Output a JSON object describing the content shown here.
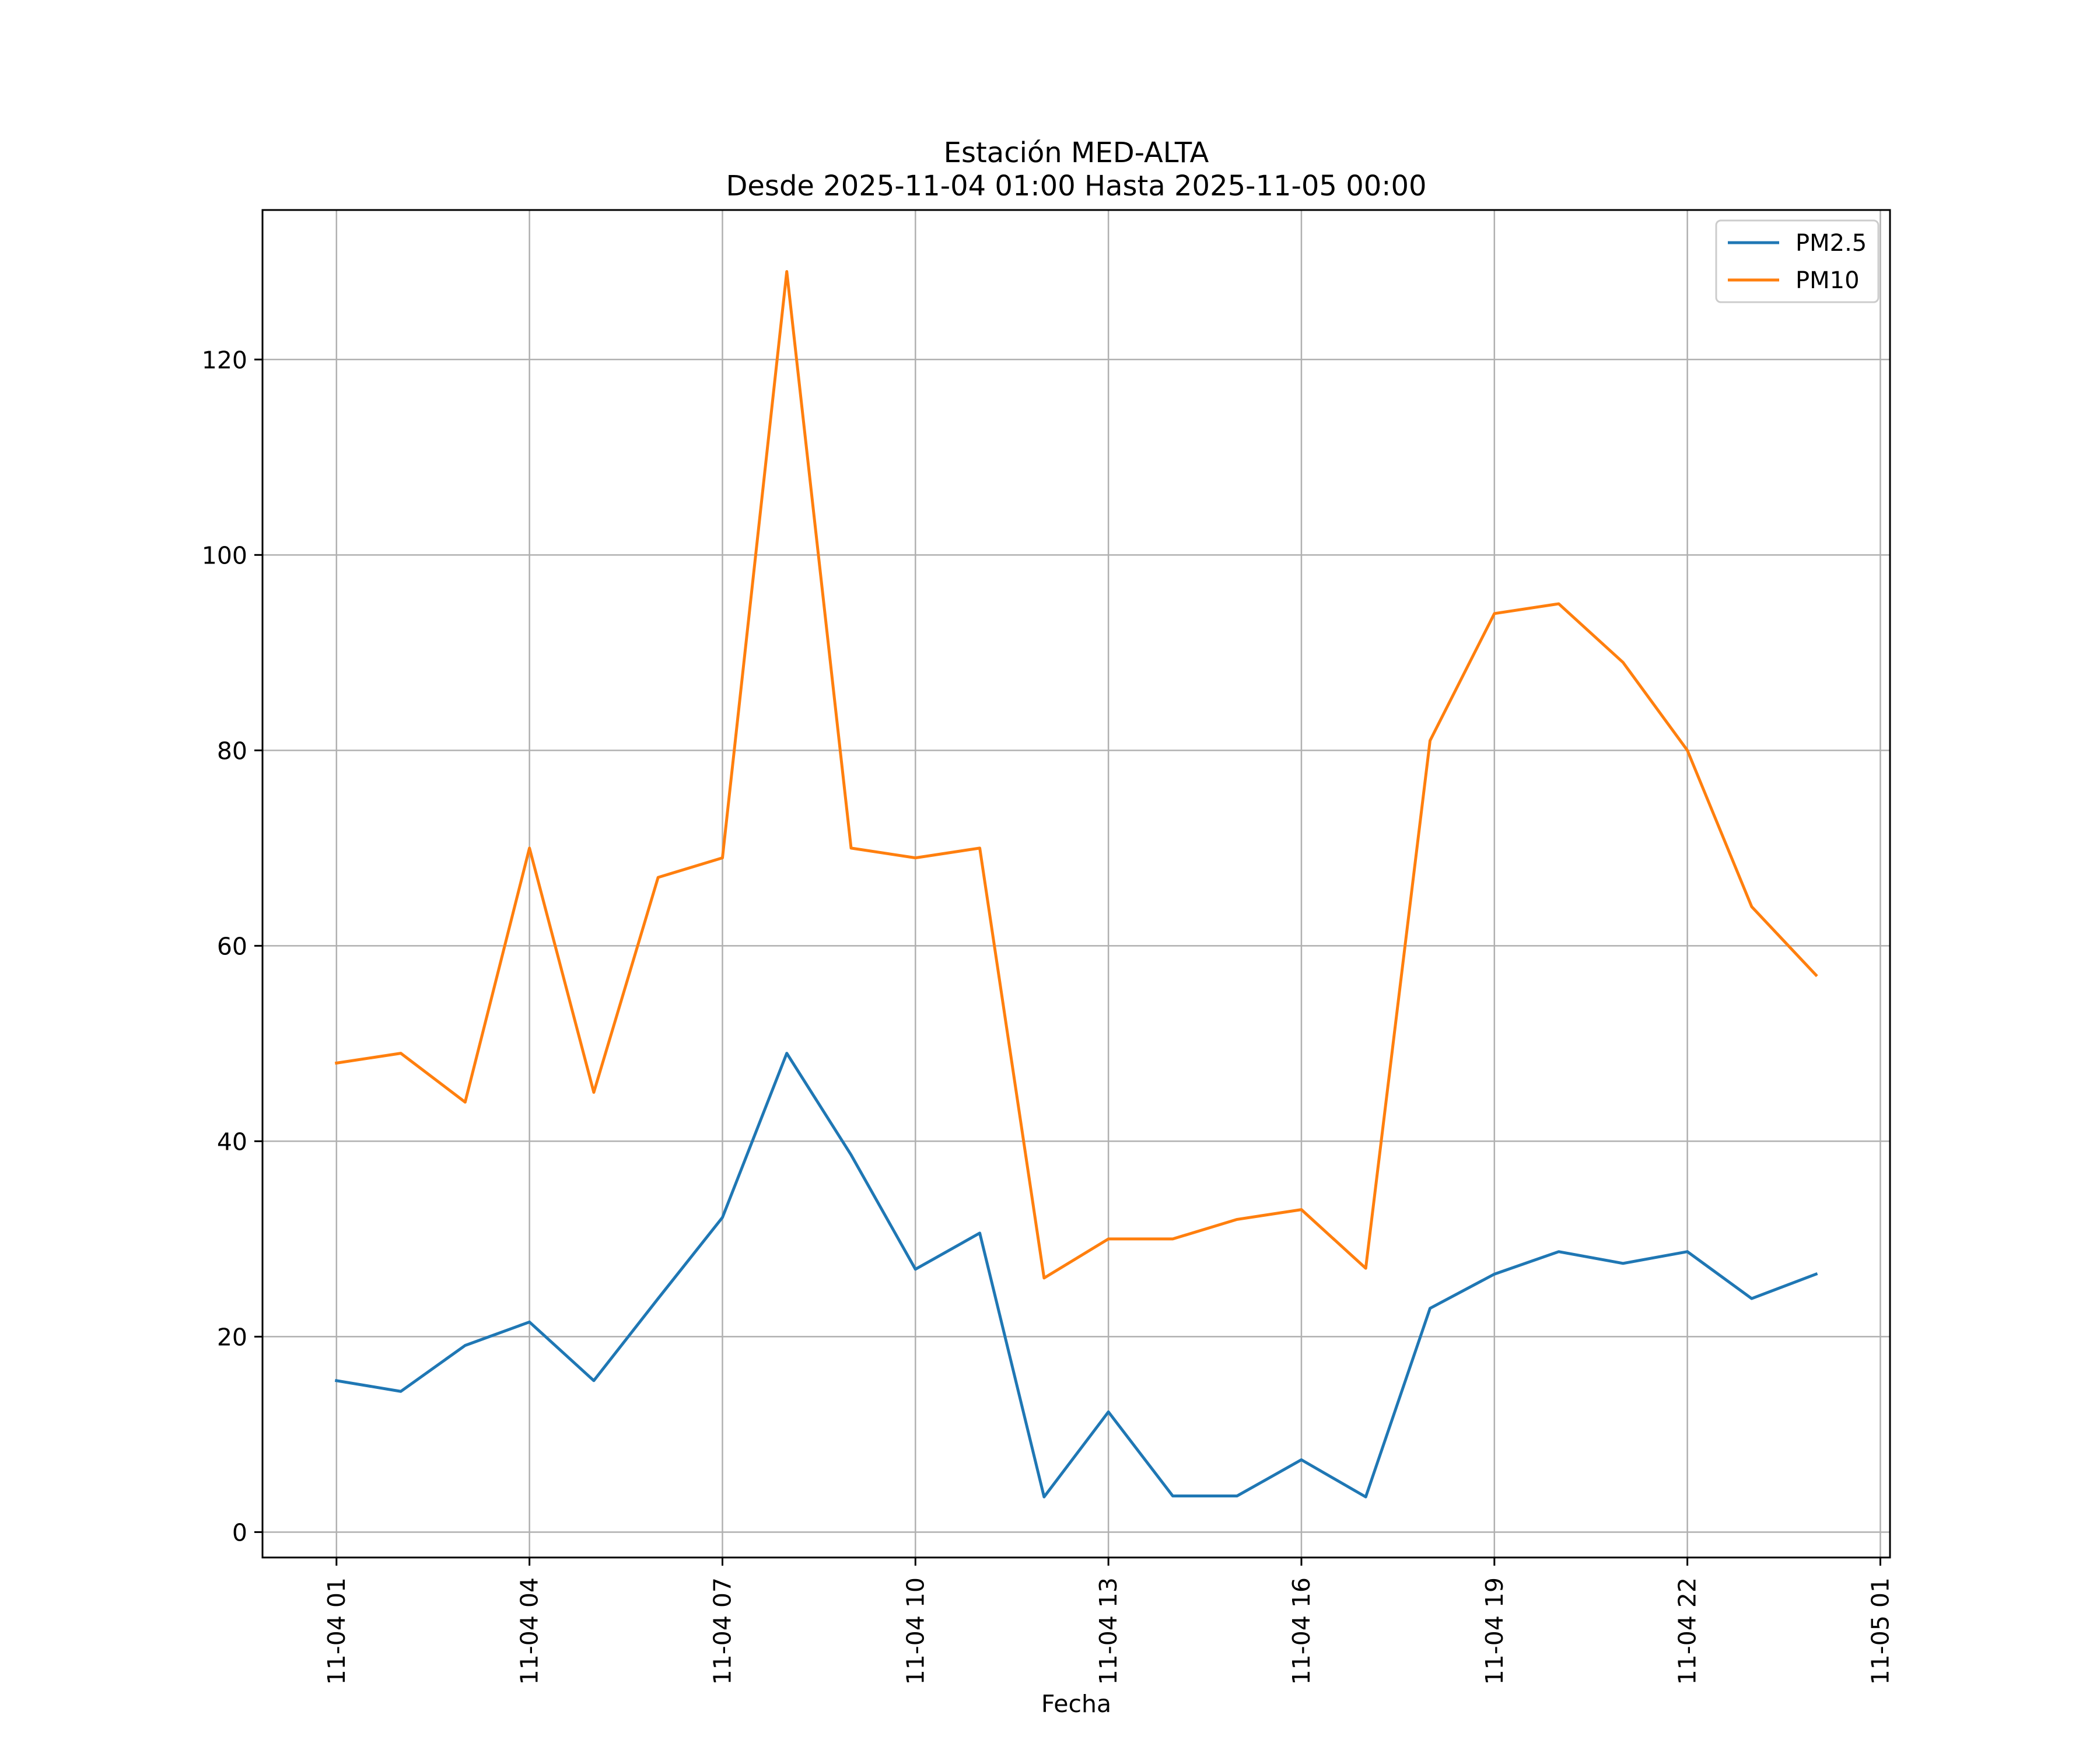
{
  "chart_data": {
    "type": "line",
    "title_line1": "Estación MED-ALTA",
    "title_line2": "Desde 2025-11-04 01:00 Hasta 2025-11-05 00:00",
    "xlabel": "Fecha",
    "ylabel": "",
    "x": [
      "11-04 01",
      "11-04 02",
      "11-04 03",
      "11-04 04",
      "11-04 05",
      "11-04 06",
      "11-04 07",
      "11-04 08",
      "11-04 09",
      "11-04 10",
      "11-04 11",
      "11-04 12",
      "11-04 13",
      "11-04 14",
      "11-04 15",
      "11-04 16",
      "11-04 17",
      "11-04 18",
      "11-04 19",
      "11-04 20",
      "11-04 21",
      "11-04 22",
      "11-04 23",
      "11-05 00"
    ],
    "x_ticks": [
      "11-04 01",
      "11-04 04",
      "11-04 07",
      "11-04 10",
      "11-04 13",
      "11-04 16",
      "11-04 19",
      "11-04 22",
      "11-05 01"
    ],
    "x_tick_hours": [
      0,
      3,
      6,
      9,
      12,
      15,
      18,
      21,
      24
    ],
    "xlim_hours": [
      -1.15,
      24.15
    ],
    "y_ticks": [
      0,
      20,
      40,
      60,
      80,
      100,
      120
    ],
    "y_tick_labels": [
      "0",
      "20",
      "40",
      "60",
      "80",
      "100",
      "120"
    ],
    "ylim": [
      -2.6,
      135.3
    ],
    "grid": true,
    "legend_position": "top-right",
    "series": [
      {
        "name": "PM2.5",
        "color": "#1f77b4",
        "values": [
          15.5,
          14.4,
          19.1,
          21.5,
          15.5,
          23.9,
          32.2,
          49.0,
          38.6,
          26.9,
          30.6,
          3.6,
          12.3,
          3.7,
          3.7,
          7.4,
          3.6,
          22.9,
          26.4,
          28.7,
          27.5,
          28.7,
          23.9,
          26.4
        ]
      },
      {
        "name": "PM10",
        "color": "#ff7f0e",
        "values": [
          48,
          49,
          44,
          70,
          45,
          67,
          69,
          129,
          70,
          69,
          70,
          26,
          30,
          30,
          32,
          33,
          27,
          81,
          94,
          95,
          89,
          80,
          64,
          57
        ]
      }
    ]
  }
}
